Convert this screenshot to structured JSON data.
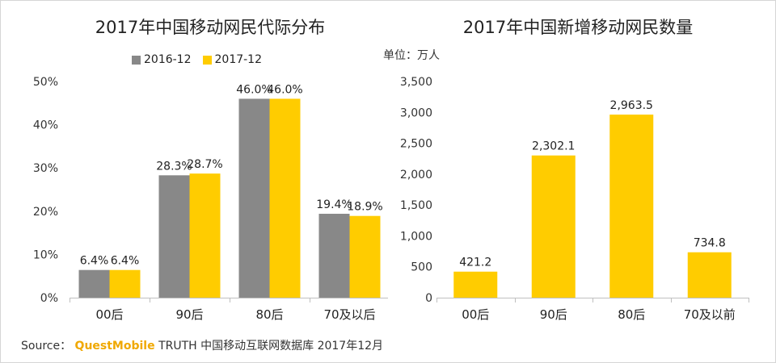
{
  "chart_data": [
    {
      "type": "bar",
      "title": "2017年中国移动网民代际分布",
      "categories": [
        "00后",
        "90后",
        "80后",
        "70及以后"
      ],
      "series": [
        {
          "name": "2016-12",
          "color": "#888888",
          "values": [
            6.4,
            28.3,
            46.0,
            19.4
          ]
        },
        {
          "name": "2017-12",
          "color": "#ffcc00",
          "values": [
            6.4,
            28.7,
            46.0,
            18.9
          ]
        }
      ],
      "labels": [
        [
          "6.4%",
          "28.3%",
          "46.0%",
          "19.4%"
        ],
        [
          "6.4%",
          "28.7%",
          "46.0%",
          "18.9%"
        ]
      ],
      "ylim": [
        0,
        50
      ],
      "yticks": [
        0,
        10,
        20,
        30,
        40,
        50
      ],
      "ytick_labels": [
        "0%",
        "10%",
        "20%",
        "30%",
        "40%",
        "50%"
      ],
      "xlabel": "",
      "ylabel": "",
      "legend": "top-center"
    },
    {
      "type": "bar",
      "title": "2017年中国新增移动网民数量",
      "unit_label": "单位：万人",
      "categories": [
        "00后",
        "90后",
        "80后",
        "70及以前"
      ],
      "series": [
        {
          "name": "新增移动网民",
          "color": "#ffcc00",
          "values": [
            421.2,
            2302.1,
            2963.5,
            734.8
          ]
        }
      ],
      "labels": [
        [
          "421.2",
          "2,302.1",
          "2,963.5",
          "734.8"
        ]
      ],
      "ylim": [
        0,
        3500
      ],
      "yticks": [
        0,
        500,
        1000,
        1500,
        2000,
        2500,
        3000,
        3500
      ],
      "ytick_labels": [
        "0",
        "500",
        "1,000",
        "1,500",
        "2,000",
        "2,500",
        "3,000",
        "3,500"
      ],
      "xlabel": "",
      "ylabel": ""
    }
  ],
  "source": {
    "prefix": "Source：",
    "brand": "QuestMobile",
    "rest": "TRUTH 中国移动互联网数据库 2017年12月"
  }
}
